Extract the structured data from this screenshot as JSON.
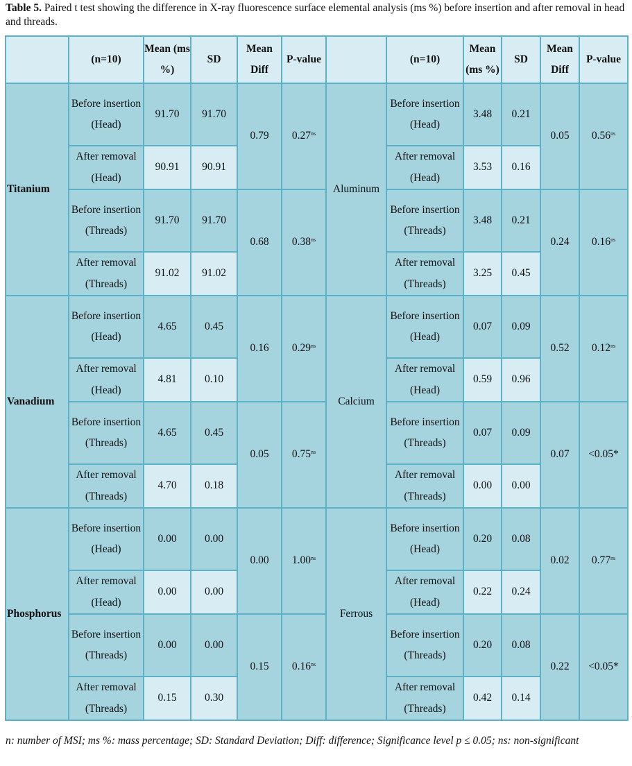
{
  "caption": {
    "number": "Table 5.",
    "text": " Paired t test showing the difference in X-ray fluorescence surface elemental analysis (ms %) before insertion and after removal in head and threads."
  },
  "header": {
    "n": "(n=10)",
    "mean": "Mean (ms %)",
    "sd": "SD",
    "mean_diff": "Mean Diff",
    "p_value": "P-value"
  },
  "labels": {
    "before_head": "Before insertion (Head)",
    "after_head": "After removal (Head)",
    "before_threads": "Before insertion (Threads)",
    "after_threads": "After removal (Threads)"
  },
  "elements": [
    {
      "left": {
        "name": "Titanium",
        "head": {
          "before_mean": "91.70",
          "before_sd": "91.70",
          "after_mean": "90.91",
          "after_sd": "90.91",
          "diff": "0.79",
          "p": "0.27",
          "sig": "ns"
        },
        "threads": {
          "before_mean": "91.70",
          "before_sd": "91.70",
          "after_mean": "91.02",
          "after_sd": "91.02",
          "diff": "0.68",
          "p": "0.38",
          "sig": "ns"
        }
      },
      "right": {
        "name": "Aluminum",
        "head": {
          "before_mean": "3.48",
          "before_sd": "0.21",
          "after_mean": "3.53",
          "after_sd": "0.16",
          "diff": "0.05",
          "p": "0.56",
          "sig": "ns"
        },
        "threads": {
          "before_mean": "3.48",
          "before_sd": "0.21",
          "after_mean": "3.25",
          "after_sd": "0.45",
          "diff": "0.24",
          "p": "0.16",
          "sig": "ns"
        }
      }
    },
    {
      "left": {
        "name": "Vanadium",
        "head": {
          "before_mean": "4.65",
          "before_sd": "0.45",
          "after_mean": "4.81",
          "after_sd": "0.10",
          "diff": "0.16",
          "p": "0.29",
          "sig": "ns"
        },
        "threads": {
          "before_mean": "4.65",
          "before_sd": "0.45",
          "after_mean": "4.70",
          "after_sd": "0.18",
          "diff": "0.05",
          "p": "0.75",
          "sig": "ns"
        }
      },
      "right": {
        "name": "Calcium",
        "head": {
          "before_mean": "0.07",
          "before_sd": "0.09",
          "after_mean": "0.59",
          "after_sd": "0.96",
          "diff": "0.52",
          "p": "0.12",
          "sig": "ns"
        },
        "threads": {
          "before_mean": "0.07",
          "before_sd": "0.09",
          "after_mean": "0.00",
          "after_sd": "0.00",
          "diff": "0.07",
          "p": "<0.05*",
          "sig": ""
        }
      }
    },
    {
      "left": {
        "name": "Phosphorus",
        "head": {
          "before_mean": "0.00",
          "before_sd": "0.00",
          "after_mean": "0.00",
          "after_sd": "0.00",
          "diff": "0.00",
          "p": "1.00",
          "sig": "ns"
        },
        "threads": {
          "before_mean": "0.00",
          "before_sd": "0.00",
          "after_mean": "0.15",
          "after_sd": "0.30",
          "diff": "0.15",
          "p": "0.16",
          "sig": "ns"
        }
      },
      "right": {
        "name": "Ferrous",
        "head": {
          "before_mean": "0.20",
          "before_sd": "0.08",
          "after_mean": "0.22",
          "after_sd": "0.24",
          "diff": "0.02",
          "p": "0.77",
          "sig": "ns"
        },
        "threads": {
          "before_mean": "0.20",
          "before_sd": "0.08",
          "after_mean": "0.42",
          "after_sd": "0.14",
          "diff": "0.22",
          "p": "<0.05*",
          "sig": ""
        }
      }
    }
  ],
  "footnote": "n: number of MSI; ms %: mass percentage; SD: Standard Deviation; Diff: difference; Significance level p ≤ 0.05; ns: non-significant",
  "colors": {
    "header_bg": "#d7edf3",
    "dark_cell": "#a5d3de",
    "light_cell": "#d7edf3",
    "border": "#5bb1c7"
  }
}
